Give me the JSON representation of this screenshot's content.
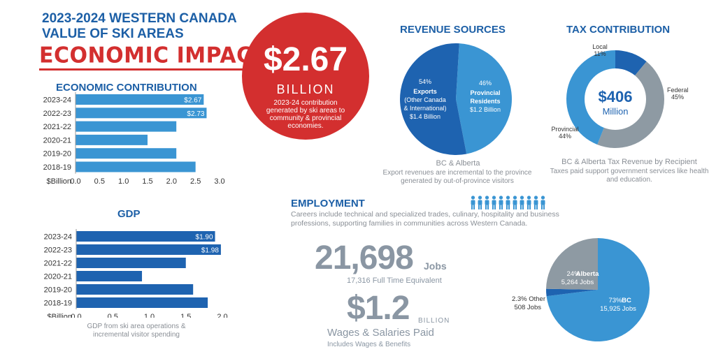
{
  "header": {
    "title_line1": "2023-2024 WESTERN CANADA",
    "title_line2": "VALUE OF SKI AREAS",
    "subtitle": "ECONOMIC IMPACT"
  },
  "headline": {
    "amount": "$2.67",
    "unit": "BILLION",
    "description": "2023-24 contribution generated by ski areas to community & provincial economies."
  },
  "colors": {
    "blue": "#1c5fa6",
    "red": "#d32f2f",
    "lightblue": "#2f8fcc",
    "gray": "#8e9aa3"
  },
  "chart_data": [
    {
      "type": "bar",
      "orientation": "horizontal",
      "title": "ECONOMIC CONTRIBUTION",
      "categories": [
        "2023-24",
        "2022-23",
        "2021-22",
        "2020-21",
        "2019-20",
        "2018-19"
      ],
      "values": [
        2.67,
        2.73,
        2.1,
        1.5,
        2.1,
        2.5
      ],
      "value_labels": [
        "$2.67",
        "$2.73",
        "",
        "",
        "",
        ""
      ],
      "xlabel": "$Billion",
      "xticks": [
        "0.0",
        "0.5",
        "1.0",
        "1.5",
        "2.0",
        "2.5",
        "3.0"
      ],
      "xlim": [
        0,
        3.0
      ],
      "grid": false
    },
    {
      "type": "bar",
      "orientation": "horizontal",
      "title": "GDP",
      "categories": [
        "2023-24",
        "2022-23",
        "2021-22",
        "2020-21",
        "2019-20",
        "2018-19"
      ],
      "values": [
        1.9,
        1.98,
        1.5,
        0.9,
        1.6,
        1.8
      ],
      "value_labels": [
        "$1.90",
        "$1.98",
        "",
        "",
        "",
        ""
      ],
      "xlabel": "$Billion",
      "xticks": [
        "0.0",
        "0.5",
        "1.0",
        "1.5",
        "2.0"
      ],
      "xlim": [
        0,
        2.0
      ],
      "note": "GDP from ski area operations & incremental visitor spending",
      "grid": false
    },
    {
      "type": "pie",
      "title": "REVENUE SOURCES",
      "slices": [
        {
          "pct": "54%",
          "name": "Exports",
          "detail": "(Other Canada & International)",
          "amount": "$1.4 Billion",
          "value": 54
        },
        {
          "pct": "46%",
          "name": "Provincial Residents",
          "amount": "$1.2 Billion",
          "value": 46
        }
      ],
      "caption": "BC & Alberta",
      "note": "Export revenues are incremental to the province generated by out-of-province visitors"
    },
    {
      "type": "pie",
      "title": "TAX CONTRIBUTION",
      "center_amount": "$406",
      "center_unit": "Million",
      "slices": [
        {
          "name": "Local",
          "pct": "11%",
          "value": 11
        },
        {
          "name": "Federal",
          "pct": "45%",
          "value": 45
        },
        {
          "name": "Provincial",
          "pct": "44%",
          "value": 44
        }
      ],
      "caption": "BC & Alberta Tax Revenue by Recipient",
      "note": "Taxes paid support government services like health and education."
    },
    {
      "type": "pie",
      "title": "",
      "slices": [
        {
          "pct": "73%",
          "name": "BC",
          "jobs": "15,925 Jobs",
          "value": 73
        },
        {
          "pct": "24%",
          "name": "Alberta",
          "jobs": "5,264 Jobs",
          "value": 24
        },
        {
          "pct": "2.3%",
          "name": "Other",
          "jobs": "508 Jobs",
          "value": 2.3
        }
      ]
    }
  ],
  "employment": {
    "title": "EMPLOYMENT",
    "description": "Careers include technical and specialized trades, culinary, hospitality and business professions, supporting families in communities across Western Canada.",
    "jobs_number": "21,698",
    "jobs_unit": "Jobs",
    "fte": "17,316 Full Time Equivalent",
    "wages_amount": "$1.2",
    "wages_unit": "BILLION",
    "wages_label": "Wages & Salaries Paid",
    "wages_note": "Includes Wages & Benefits",
    "people_icon": "person-icon"
  }
}
